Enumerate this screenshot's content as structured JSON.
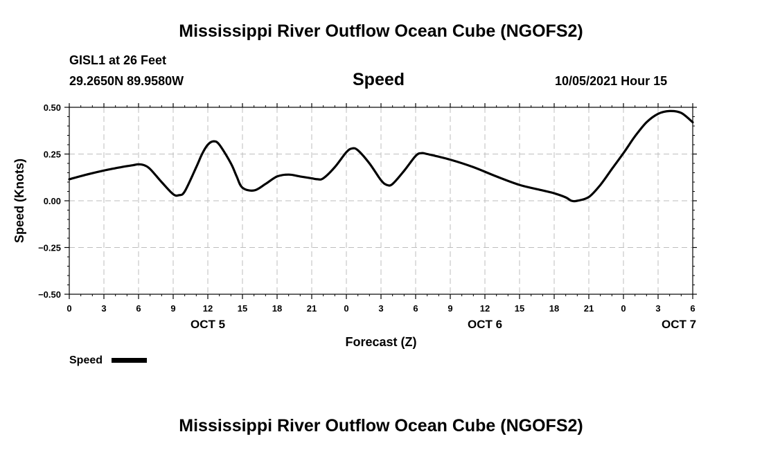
{
  "header": {
    "title_top": "Mississippi River Outflow Ocean Cube (NGOFS2)",
    "station": "GISL1 at 26 Feet",
    "coords": "29.2650N  89.9580W",
    "variable": "Speed",
    "datetime": "10/05/2021 Hour 15",
    "title_bottom": "Mississippi River Outflow Ocean Cube (NGOFS2)"
  },
  "legend": {
    "label": "Speed"
  },
  "chart_data": {
    "type": "line",
    "title": "Speed",
    "xlabel": "Forecast (Z)",
    "ylabel": "Speed (Knots)",
    "x_unit": "hours from 00Z Oct 5",
    "xlim": [
      0,
      54
    ],
    "ylim": [
      -0.5,
      0.5
    ],
    "grid": true,
    "x_tick_values": [
      0,
      3,
      6,
      9,
      12,
      15,
      18,
      21,
      24,
      27,
      30,
      33,
      36,
      39,
      42,
      45,
      48,
      51,
      54
    ],
    "x_tick_labels": [
      "0",
      "3",
      "6",
      "9",
      "12",
      "15",
      "18",
      "21",
      "0",
      "3",
      "6",
      "9",
      "12",
      "15",
      "18",
      "21",
      "0",
      "3",
      "6"
    ],
    "y_tick_values": [
      0.5,
      0.25,
      0.0,
      -0.25,
      -0.5
    ],
    "y_tick_labels": [
      "0.50",
      "0.25",
      "0.00",
      "−0.25",
      "−0.50"
    ],
    "day_labels": [
      {
        "x": 12,
        "label": "OCT 5"
      },
      {
        "x": 36,
        "label": "OCT 6"
      },
      {
        "x": 52.8,
        "label": "OCT 7"
      }
    ],
    "series": [
      {
        "name": "Speed",
        "color": "#000000",
        "x": [
          0,
          1.5,
          3,
          4.5,
          5.5,
          6,
          6.5,
          7,
          8,
          9,
          9.5,
          10,
          11,
          11.5,
          12,
          12.5,
          13,
          14,
          14.5,
          15,
          16,
          17,
          18,
          19,
          20,
          21,
          21.5,
          22,
          23,
          24,
          24.5,
          25,
          26,
          27,
          27.5,
          28,
          29,
          30,
          30.5,
          31,
          33,
          35,
          37,
          39,
          41,
          42,
          43,
          43.5,
          44,
          45,
          46,
          47,
          48,
          48.5,
          49,
          50,
          51,
          52,
          53,
          54
        ],
        "y": [
          0.115,
          0.14,
          0.162,
          0.18,
          0.19,
          0.195,
          0.19,
          0.17,
          0.1,
          0.035,
          0.03,
          0.05,
          0.18,
          0.25,
          0.3,
          0.318,
          0.3,
          0.2,
          0.13,
          0.07,
          0.055,
          0.09,
          0.13,
          0.14,
          0.13,
          0.12,
          0.115,
          0.12,
          0.18,
          0.26,
          0.28,
          0.27,
          0.2,
          0.11,
          0.085,
          0.09,
          0.16,
          0.24,
          0.255,
          0.25,
          0.22,
          0.18,
          0.13,
          0.085,
          0.055,
          0.04,
          0.018,
          0.0,
          0.0,
          0.02,
          0.085,
          0.17,
          0.255,
          0.3,
          0.345,
          0.42,
          0.465,
          0.48,
          0.47,
          0.42
        ]
      }
    ]
  }
}
